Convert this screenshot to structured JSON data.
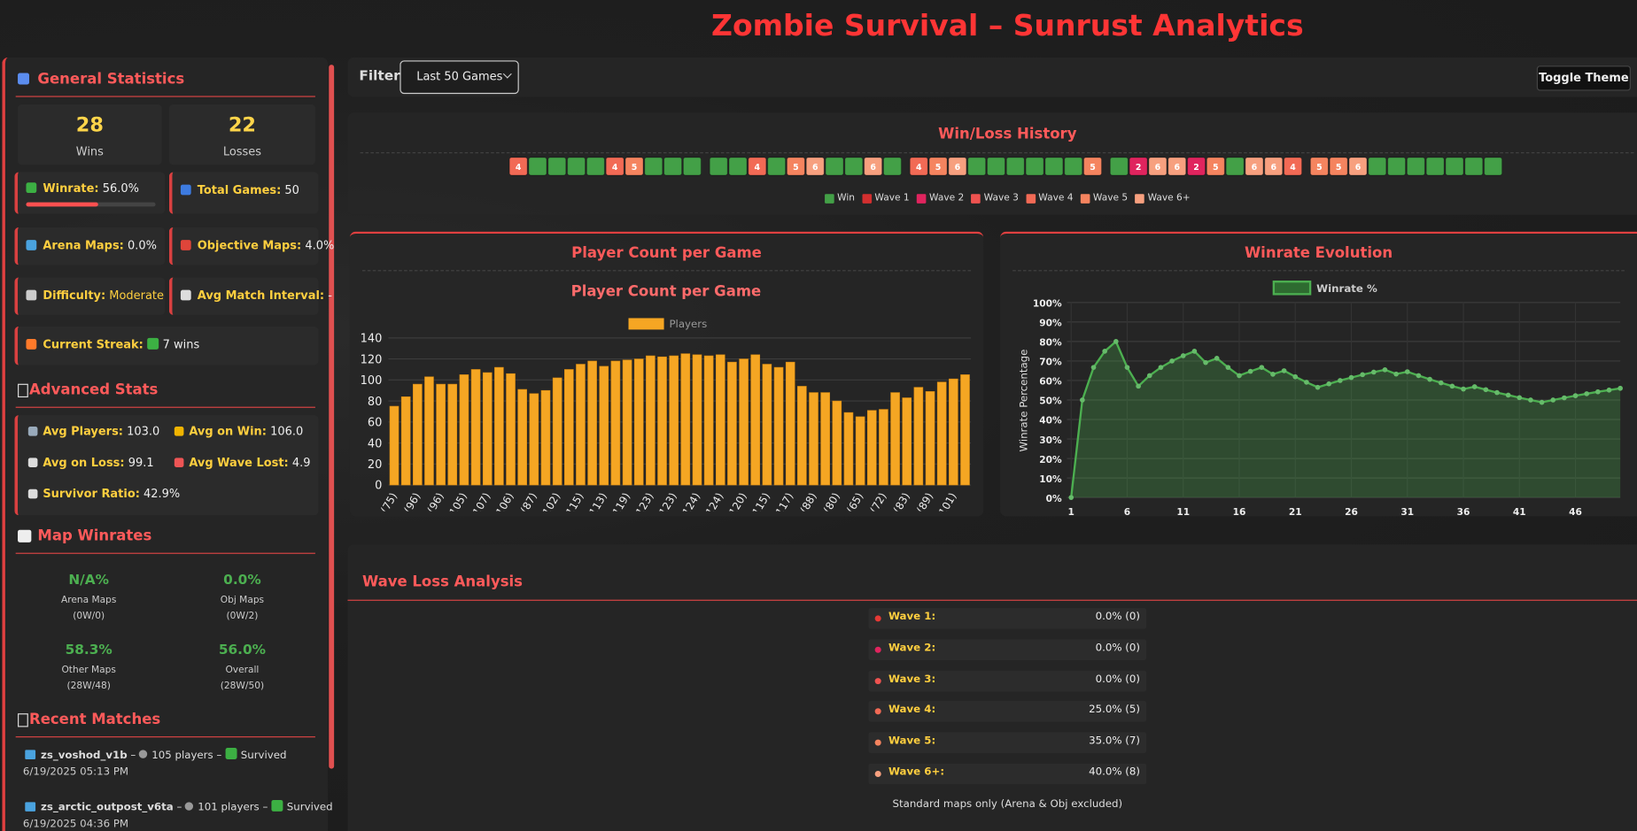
{
  "header": {
    "title": "Zombie Survival – Sunrust Analytics"
  },
  "toolbar": {
    "filter_label": "Filter:",
    "filter_value": "Last 50 Games",
    "toggle": "Toggle Theme"
  },
  "sidebar": {
    "general": {
      "title": "General Statistics",
      "wins": {
        "value": 28,
        "label": "Wins"
      },
      "losses": {
        "value": 22,
        "label": "Losses"
      },
      "winrate": {
        "label": "Winrate:",
        "value": 56,
        "value_label": "56.0%"
      },
      "total_games": {
        "label": "Total Games:",
        "value": 50
      },
      "arena_maps": {
        "label": "Arena Maps:",
        "value": "0.0%"
      },
      "objective_maps": {
        "label": "Objective Maps:",
        "value": "4.0%"
      },
      "difficulty": {
        "label": "Difficulty:",
        "value": "Moderate"
      },
      "avg_match_interval": {
        "label": "Avg Match Interval:",
        "value": "-"
      },
      "current_streak": {
        "label": "Current Streak:",
        "value": "7 wins"
      }
    },
    "advanced": {
      "title": "Advanced Stats",
      "items": [
        {
          "label": "Avg Players:",
          "value": "103.0"
        },
        {
          "label": "Avg on Win:",
          "value": "106.0"
        },
        {
          "label": "Avg on Loss:",
          "value": "99.1"
        },
        {
          "label": "Avg Wave Lost:",
          "value": "4.9"
        },
        {
          "label": "Survivor Ratio:",
          "value": "42.9%"
        }
      ]
    },
    "map_winrates": {
      "title": "Map Winrates",
      "items": [
        {
          "rate": "N/A%",
          "name": "Arena Maps",
          "record": "(0W/0)"
        },
        {
          "rate": "0.0%",
          "name": "Obj Maps",
          "record": "(0W/2)"
        },
        {
          "rate": "58.3%",
          "name": "Other Maps",
          "record": "(28W/48)"
        },
        {
          "rate": "56.0%",
          "name": "Overall",
          "record": "(28W/50)"
        }
      ]
    },
    "recent": {
      "title": "Recent Matches",
      "separator": "–",
      "matches": [
        {
          "map": "zs_voshod_v1b",
          "players": "105 players",
          "status": "Survived",
          "date": "6/19/2025 05:13 PM"
        },
        {
          "map": "zs_arctic_outpost_v6ta",
          "players": "101 players",
          "status": "Survived",
          "date": "6/19/2025 04:36 PM"
        }
      ]
    }
  },
  "history": {
    "title": "Win/Loss History",
    "games": [
      4,
      null,
      null,
      null,
      null,
      4,
      5,
      null,
      null,
      null,
      null,
      null,
      4,
      null,
      5,
      6,
      null,
      null,
      6,
      null,
      4,
      5,
      6,
      null,
      null,
      null,
      null,
      null,
      null,
      5,
      null,
      2,
      6,
      6,
      2,
      5,
      null,
      6,
      6,
      4,
      5,
      5,
      6,
      null,
      null,
      null,
      null,
      null,
      null,
      null
    ],
    "legend": [
      {
        "name": "Win",
        "color": "#43a047"
      },
      {
        "name": "Wave 1",
        "color": "#d32f2f"
      },
      {
        "name": "Wave 2",
        "color": "#e0245e"
      },
      {
        "name": "Wave 3",
        "color": "#ef5350"
      },
      {
        "name": "Wave 4",
        "color": "#f26a55"
      },
      {
        "name": "Wave 5",
        "color": "#f5845f"
      },
      {
        "name": "Wave 6+",
        "color": "#f7a07f"
      }
    ]
  },
  "chart_data": [
    {
      "type": "bar",
      "panel_title": "Player Count per Game",
      "title": "Player Count per Game",
      "categories": [
        "(75)",
        null,
        "(96)",
        null,
        "(96)",
        null,
        "(105)",
        null,
        "(107)",
        null,
        "(106)",
        null,
        "(87)",
        null,
        "(102)",
        null,
        "(115)",
        null,
        "(113)",
        null,
        "(119)",
        null,
        "(123)",
        null,
        "(123)",
        null,
        "(124)",
        null,
        "(124)",
        null,
        "(120)",
        null,
        "(115)",
        null,
        "(117)",
        null,
        "(88)",
        null,
        "(80)",
        null,
        "(65)",
        null,
        "(72)",
        null,
        "(83)",
        null,
        "(89)",
        null,
        "(101)",
        null
      ],
      "series": [
        {
          "name": "Players",
          "color": "#f5a623",
          "values": [
            75,
            84,
            96,
            103,
            96,
            96,
            105,
            110,
            107,
            112,
            106,
            91,
            87,
            90,
            102,
            110,
            115,
            118,
            113,
            118,
            119,
            120,
            123,
            122,
            123,
            125,
            124,
            123,
            124,
            117,
            120,
            124,
            115,
            112,
            117,
            94,
            88,
            88,
            80,
            69,
            65,
            71,
            72,
            88,
            83,
            93,
            89,
            98,
            101,
            105
          ]
        }
      ],
      "ylim": [
        0,
        140
      ],
      "yticks": [
        0,
        20,
        40,
        60,
        80,
        100,
        120,
        140
      ],
      "grid": true
    },
    {
      "type": "line",
      "title": "Winrate Evolution",
      "ylabel": "Winrate Percentage",
      "x": [
        1,
        2,
        3,
        4,
        5,
        6,
        7,
        8,
        9,
        10,
        11,
        12,
        13,
        14,
        15,
        16,
        17,
        18,
        19,
        20,
        21,
        22,
        23,
        24,
        25,
        26,
        27,
        28,
        29,
        30,
        31,
        32,
        33,
        34,
        35,
        36,
        37,
        38,
        39,
        40,
        41,
        42,
        43,
        44,
        45,
        46,
        47,
        48,
        49,
        50
      ],
      "series": [
        {
          "name": "Winrate %",
          "color": "#4caf50",
          "values": [
            0,
            50,
            66.7,
            75,
            80,
            66.7,
            57.1,
            62.5,
            66.7,
            70,
            72.7,
            75,
            69.2,
            71.4,
            66.7,
            62.5,
            64.7,
            66.7,
            63.2,
            65,
            61.9,
            59.1,
            56.5,
            58.3,
            60,
            61.5,
            63,
            64.3,
            65.5,
            63.3,
            64.5,
            62.5,
            60.6,
            58.8,
            57.1,
            55.6,
            56.8,
            55.3,
            53.8,
            52.5,
            51.2,
            50,
            48.8,
            50,
            51.1,
            52.2,
            53.2,
            54.2,
            55.1,
            56
          ]
        }
      ],
      "xlim": [
        1,
        50
      ],
      "xticks": [
        1,
        6,
        11,
        16,
        21,
        26,
        31,
        36,
        41,
        46
      ],
      "ylim": [
        0,
        100
      ],
      "yticks": [
        {
          "value": 0,
          "label": "0%"
        },
        {
          "value": 10,
          "label": "10%"
        },
        {
          "value": 20,
          "label": "20%"
        },
        {
          "value": 30,
          "label": "30%"
        },
        {
          "value": 40,
          "label": "40%"
        },
        {
          "value": 50,
          "label": "50%"
        },
        {
          "value": 60,
          "label": "60%"
        },
        {
          "value": 70,
          "label": "70%"
        },
        {
          "value": 80,
          "label": "80%"
        },
        {
          "value": 90,
          "label": "90%"
        },
        {
          "value": 100,
          "label": "100%"
        }
      ],
      "grid": true
    }
  ],
  "wave_loss": {
    "title": "Wave Loss Analysis",
    "rows": [
      {
        "label": "Wave 1:",
        "value": "0.0% (0)"
      },
      {
        "label": "Wave 2:",
        "value": "0.0% (0)"
      },
      {
        "label": "Wave 3:",
        "value": "0.0% (0)"
      },
      {
        "label": "Wave 4:",
        "value": "25.0% (5)"
      },
      {
        "label": "Wave 5:",
        "value": "35.0% (7)"
      },
      {
        "label": "Wave 6+:",
        "value": "40.0% (8)"
      }
    ],
    "note": "Standard maps only (Arena & Obj excluded)"
  }
}
